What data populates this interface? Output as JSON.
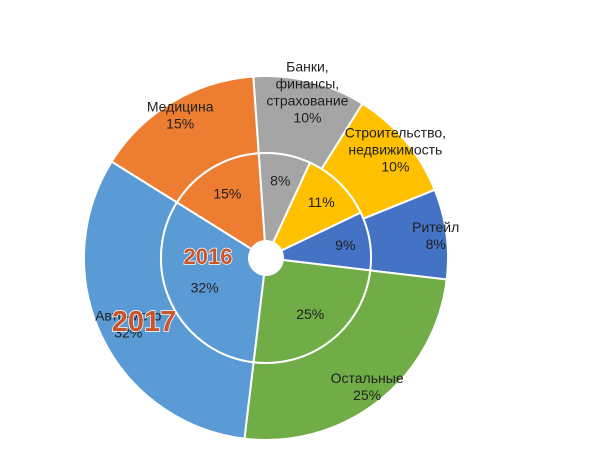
{
  "chart_data": {
    "type": "pie",
    "style": "nested doughnut",
    "rings": [
      {
        "name": "2017",
        "position": "outer",
        "segments": [
          {
            "label": "Банки, финансы, страхование",
            "value": 10,
            "value_text": "10%",
            "color": "#a5a5a5"
          },
          {
            "label": "Строительство, недвижимость",
            "value": 10,
            "value_text": "10%",
            "color": "#ffc000"
          },
          {
            "label": "Ритейл",
            "value": 8,
            "value_text": "8%",
            "color": "#4472c4"
          },
          {
            "label": "Остальные",
            "value": 25,
            "value_text": "25%",
            "color": "#70ad47"
          },
          {
            "label": "Авто-мото",
            "value": 32,
            "value_text": "32%",
            "color": "#5b9bd5"
          },
          {
            "label": "Медицина",
            "value": 15,
            "value_text": "15%",
            "color": "#ed7d31"
          }
        ]
      },
      {
        "name": "2016",
        "position": "inner",
        "segments": [
          {
            "label": "Банки, финансы, страхование",
            "value": 8,
            "value_text": "8%",
            "color": "#a5a5a5"
          },
          {
            "label": "Строительство, недвижимость",
            "value": 11,
            "value_text": "11%",
            "color": "#ffc000"
          },
          {
            "label": "Ритейл",
            "value": 9,
            "value_text": "9%",
            "color": "#4472c4"
          },
          {
            "label": "Остальные",
            "value": 25,
            "value_text": "25%",
            "color": "#70ad47"
          },
          {
            "label": "Авто-мото",
            "value": 32,
            "value_text": "32%",
            "color": "#5b9bd5"
          },
          {
            "label": "Медицина",
            "value": 15,
            "value_text": "15%",
            "color": "#ed7d31"
          }
        ]
      }
    ],
    "ring_label_color": "#c9562b",
    "legend": "none"
  }
}
